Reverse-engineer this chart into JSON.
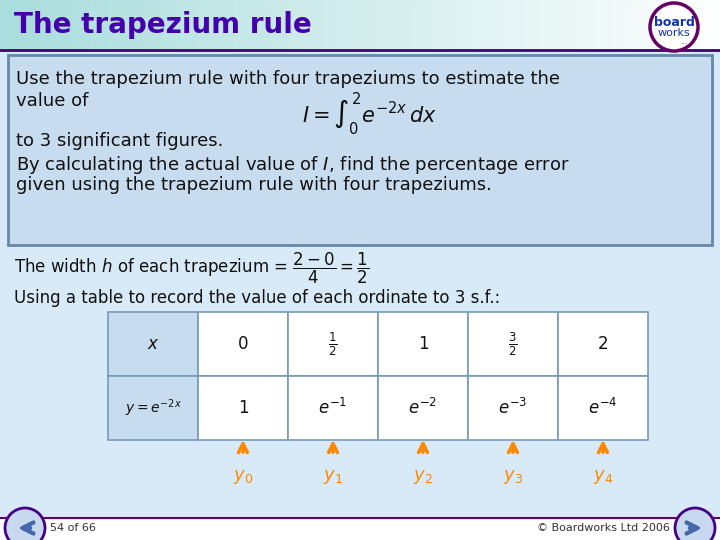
{
  "title": "The trapezium rule",
  "title_color": "#4400AA",
  "header_color_left": "#AADDDD",
  "header_color_right": "#FFFFFF",
  "slide_bg": "#FFFFFF",
  "box_bg": "#C8DCF0",
  "box_border": "#6688AA",
  "body_text_color": "#111111",
  "orange": "#FF8800",
  "question_line1": "Use the trapezium rule with four trapeziums to estimate the",
  "question_line1b": "value of",
  "question_formula": "$I = \\int_0^2 e^{-2x}\\, dx$",
  "question_line2": "to 3 significant figures.",
  "question_line3": "By calculating the actual value of $I$, find the percentage error",
  "question_line4": "given using the trapezium rule with four trapeziums.",
  "width_text1": "The width $h$ of each trapezium = ",
  "width_fraction": "$\\frac{2-0}{4} = \\frac{1}{2}$",
  "table_text": "Using a table to record the value of each ordinate to 3 s.f.:",
  "x_values": [
    "$x$",
    "0",
    "$\\frac{1}{2}$",
    "1",
    "$\\frac{3}{2}$",
    "2"
  ],
  "y_values": [
    "$y = e^{-2x}$",
    "1",
    "$e^{-1}$",
    "$e^{-2}$",
    "$e^{-3}$",
    "$e^{-4}$"
  ],
  "y_labels": [
    "$y_0$",
    "$y_1$",
    "$y_2$",
    "$y_3$",
    "$y_4$"
  ],
  "footer_left": "54 of 66",
  "footer_right": "© Boardworks Ltd 2006",
  "footer_line_color": "#660066",
  "logo_border_color": "#660066",
  "nav_arrow_color": "#6688BB",
  "nav_arrow_border": "#440088"
}
